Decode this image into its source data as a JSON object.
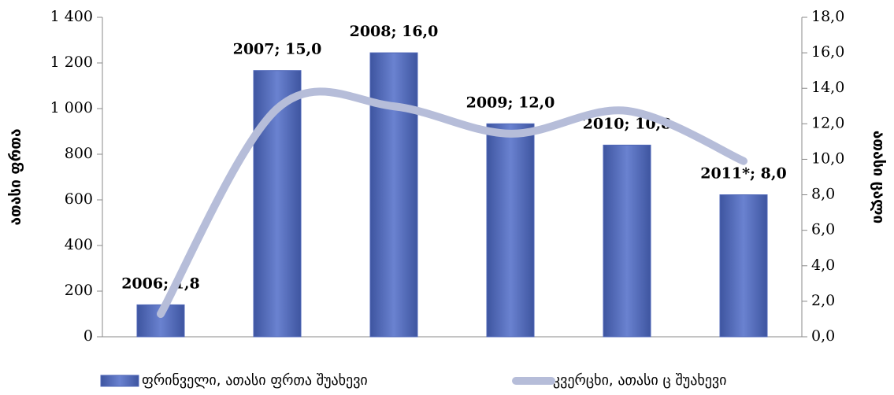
{
  "chart_data": {
    "type": "bar_line",
    "y_label": "ათასი ფრთა",
    "y2_label": "ათასი ცალი",
    "ylim": [
      0,
      1400
    ],
    "yticks": [
      {
        "value": 0,
        "label": "0"
      },
      {
        "value": 200,
        "label": "200"
      },
      {
        "value": 400,
        "label": "400"
      },
      {
        "value": 600,
        "label": "600"
      },
      {
        "value": 800,
        "label": "800"
      },
      {
        "value": 1000,
        "label": "1 000"
      },
      {
        "value": 1200,
        "label": "1 200"
      },
      {
        "value": 1400,
        "label": "1 400"
      }
    ],
    "y2lim": [
      0,
      18
    ],
    "y2ticks": [
      {
        "value": 0,
        "label": "0,0"
      },
      {
        "value": 2,
        "label": "2,0"
      },
      {
        "value": 4,
        "label": "4,0"
      },
      {
        "value": 6,
        "label": "6,0"
      },
      {
        "value": 8,
        "label": "8,0"
      },
      {
        "value": 10,
        "label": "10,0"
      },
      {
        "value": 12,
        "label": "12,0"
      },
      {
        "value": 14,
        "label": "14,0"
      },
      {
        "value": 16,
        "label": "16,0"
      },
      {
        "value": 18,
        "label": "18,0"
      }
    ],
    "series": [
      {
        "name": "ფრინველი, ათასი ფრთა შუახევი",
        "type": "bar",
        "axis": "y2",
        "color": "#4f67b8",
        "values": [
          1.8,
          15.0,
          16.0,
          12.0,
          10.8,
          8.0
        ],
        "value_labels": [
          "2006; 1,8",
          "2007; 15,0",
          "2008; 16,0",
          "2009; 12,0",
          "2010; 10,8",
          "2011*; 8,0"
        ]
      },
      {
        "name": "კვერცხი, ათასი ც შუახევი",
        "type": "line",
        "color": "#b6bdd9",
        "values": [
          100,
          1000,
          1010,
          890,
          990,
          770
        ]
      }
    ]
  }
}
